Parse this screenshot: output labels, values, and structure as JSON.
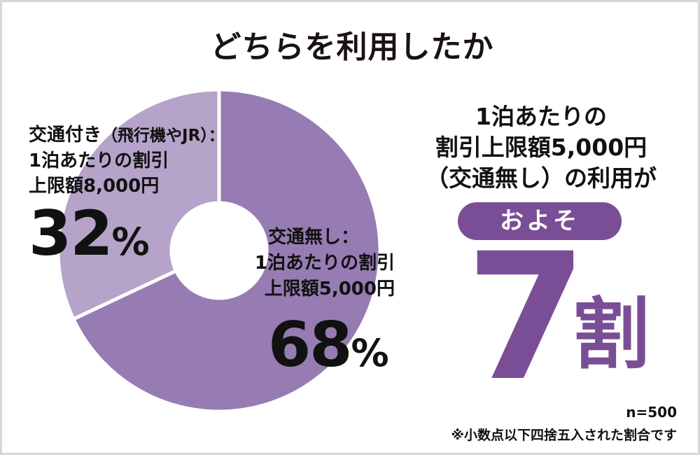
{
  "title": "どちらを利用したか",
  "chart_data": {
    "type": "pie",
    "donut": true,
    "slices": [
      {
        "label_lines": [
          "交通無し：",
          "1泊あたりの割引",
          "上限額5,000円"
        ],
        "value": 68,
        "pct_number": "68",
        "pct_sign": "%",
        "color": "#967cb2"
      },
      {
        "label_lines": [
          "交通付き",
          "1泊あたりの割引",
          "上限額8,000円"
        ],
        "label_sub": "（飛行機やJR）：",
        "value": 32,
        "pct_number": "32",
        "pct_sign": "%",
        "color": "#b5a3c9"
      }
    ],
    "annotation": {
      "headline": [
        "1泊あたりの",
        "割引上限額5,000円",
        "（交通無し）の利用が"
      ],
      "pill": "およそ",
      "big_number": "7",
      "big_unit": "割",
      "accent": "#7a4e96"
    },
    "sample_note": "n=500",
    "footnote": "※小数点以下四捨五入された割合です"
  }
}
